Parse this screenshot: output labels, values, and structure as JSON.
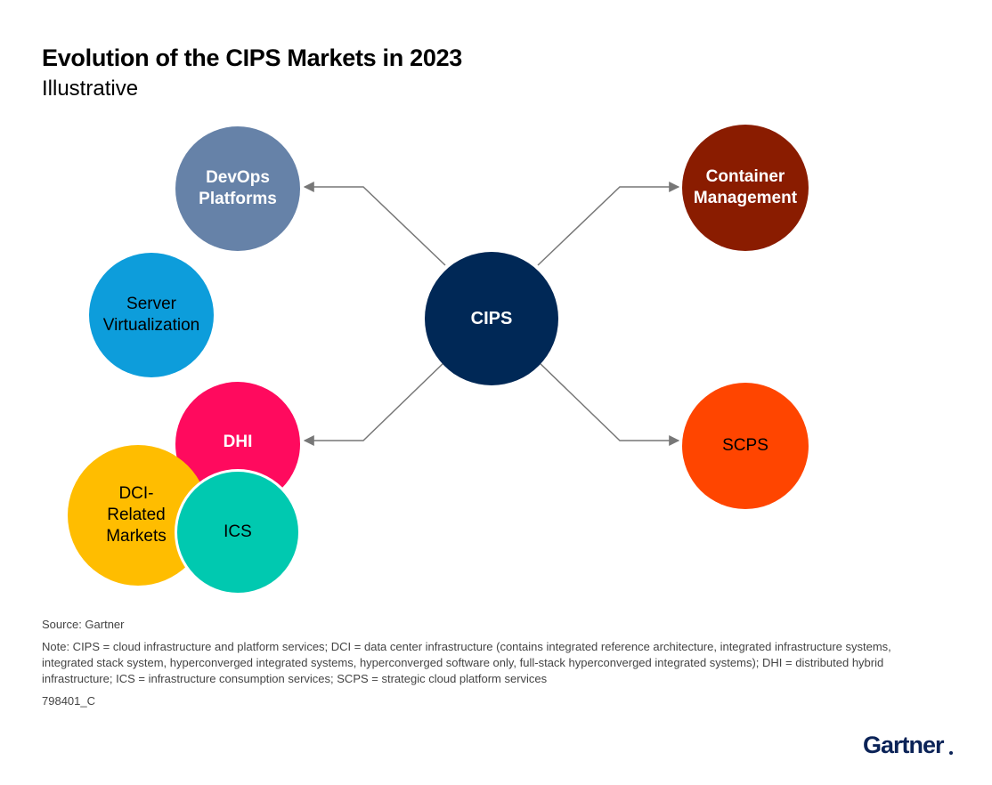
{
  "title": "Evolution of the CIPS Markets in 2023",
  "subtitle": "Illustrative",
  "nodes": {
    "devops": "DevOps\nPlatforms",
    "server": "Server\nVirtualization",
    "dhi": "DHI",
    "dci": "DCI-\nRelated\nMarkets",
    "ics": "ICS",
    "cips": "CIPS",
    "container": "Container\nManagement",
    "scps": "SCPS"
  },
  "colors": {
    "devops": "#6682a8",
    "server": "#0d9ddb",
    "dhi": "#ff0a5e",
    "dci": "#ffbd00",
    "ics": "#00c9b0",
    "cips": "#002856",
    "container": "#8a1c00",
    "scps": "#ff4500",
    "connector": "#777777"
  },
  "footer": {
    "source": "Source: Gartner",
    "note": "Note: CIPS = cloud infrastructure and platform services; DCI = data center infrastructure (contains integrated reference architecture, integrated infrastructure systems, integrated stack system, hyperconverged integrated systems, hyperconverged software only, full-stack hyperconverged integrated systems); DHI = distributed hybrid infrastructure; ICS = infrastructure consumption services; SCPS = strategic cloud platform services",
    "doc_id": "798401_C"
  },
  "logo": "Gartner"
}
